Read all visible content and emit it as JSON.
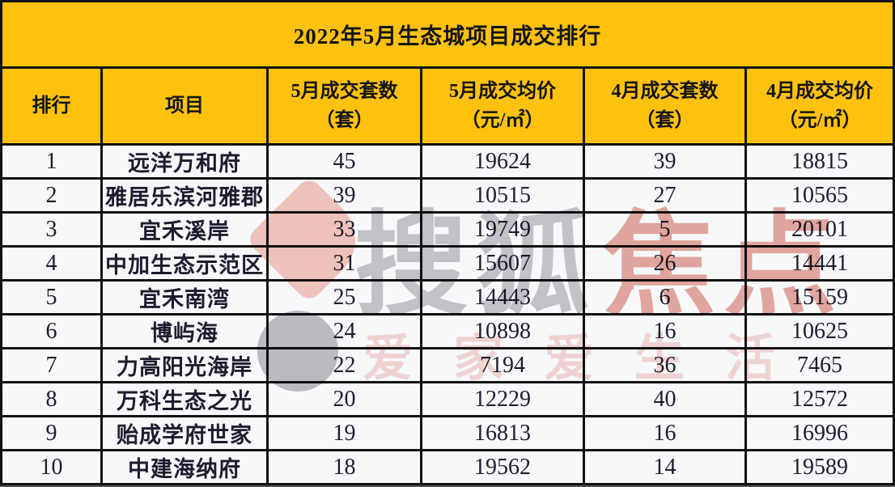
{
  "table": {
    "title": "2022年5月生态城项目成交排行",
    "accent_color": "#fec10d",
    "row_bg_color": "#f7f8fa",
    "border_color": "#121212",
    "columns": [
      {
        "line1": "排行",
        "line2": ""
      },
      {
        "line1": "项目",
        "line2": ""
      },
      {
        "line1": "5月成交套数",
        "line2": "（套）"
      },
      {
        "line1": "5月成交均价",
        "line2": "（元/㎡）"
      },
      {
        "line1": "4月成交套数",
        "line2": "（套）"
      },
      {
        "line1": "4月成交均价",
        "line2": "（元/㎡）"
      }
    ],
    "rows": [
      [
        "1",
        "远洋万和府",
        "45",
        "19624",
        "39",
        "18815"
      ],
      [
        "2",
        "雅居乐滨河雅郡",
        "39",
        "10515",
        "27",
        "10565"
      ],
      [
        "3",
        "宜禾溪岸",
        "33",
        "19749",
        "5",
        "20101"
      ],
      [
        "4",
        "中加生态示范区",
        "31",
        "15607",
        "26",
        "14441"
      ],
      [
        "5",
        "宜禾南湾",
        "25",
        "14443",
        "6",
        "15159"
      ],
      [
        "6",
        "博屿海",
        "24",
        "10898",
        "16",
        "10625"
      ],
      [
        "7",
        "力高阳光海岸",
        "22",
        "7194",
        "36",
        "7465"
      ],
      [
        "8",
        "万科生态之光",
        "20",
        "12229",
        "40",
        "12572"
      ],
      [
        "9",
        "贻成学府世家",
        "19",
        "16813",
        "16",
        "16996"
      ],
      [
        "10",
        "中建海纳府",
        "18",
        "19562",
        "14",
        "19589"
      ]
    ]
  },
  "watermark": {
    "brand_gray": "搜狐",
    "brand_red": "焦点",
    "tagline": "爱家爱生活",
    "brand_gray_color": "#8a8a92",
    "brand_red_color": "#cb3e28",
    "tagline_color": "#e47664"
  },
  "chart_data": {
    "type": "table",
    "title": "2022年5月生态城项目成交排行",
    "columns": [
      "排行",
      "项目",
      "5月成交套数（套）",
      "5月成交均价（元/㎡）",
      "4月成交套数（套）",
      "4月成交均价（元/㎡）"
    ],
    "rows": [
      [
        1,
        "远洋万和府",
        45,
        19624,
        39,
        18815
      ],
      [
        2,
        "雅居乐滨河雅郡",
        39,
        10515,
        27,
        10565
      ],
      [
        3,
        "宜禾溪岸",
        33,
        19749,
        5,
        20101
      ],
      [
        4,
        "中加生态示范区",
        31,
        15607,
        26,
        14441
      ],
      [
        5,
        "宜禾南湾",
        25,
        14443,
        6,
        15159
      ],
      [
        6,
        "博屿海",
        24,
        10898,
        16,
        10625
      ],
      [
        7,
        "力高阳光海岸",
        22,
        7194,
        36,
        7465
      ],
      [
        8,
        "万科生态之光",
        20,
        12229,
        40,
        12572
      ],
      [
        9,
        "贻成学府世家",
        19,
        16813,
        16,
        16996
      ],
      [
        10,
        "中建海纳府",
        18,
        19562,
        14,
        19589
      ]
    ]
  }
}
